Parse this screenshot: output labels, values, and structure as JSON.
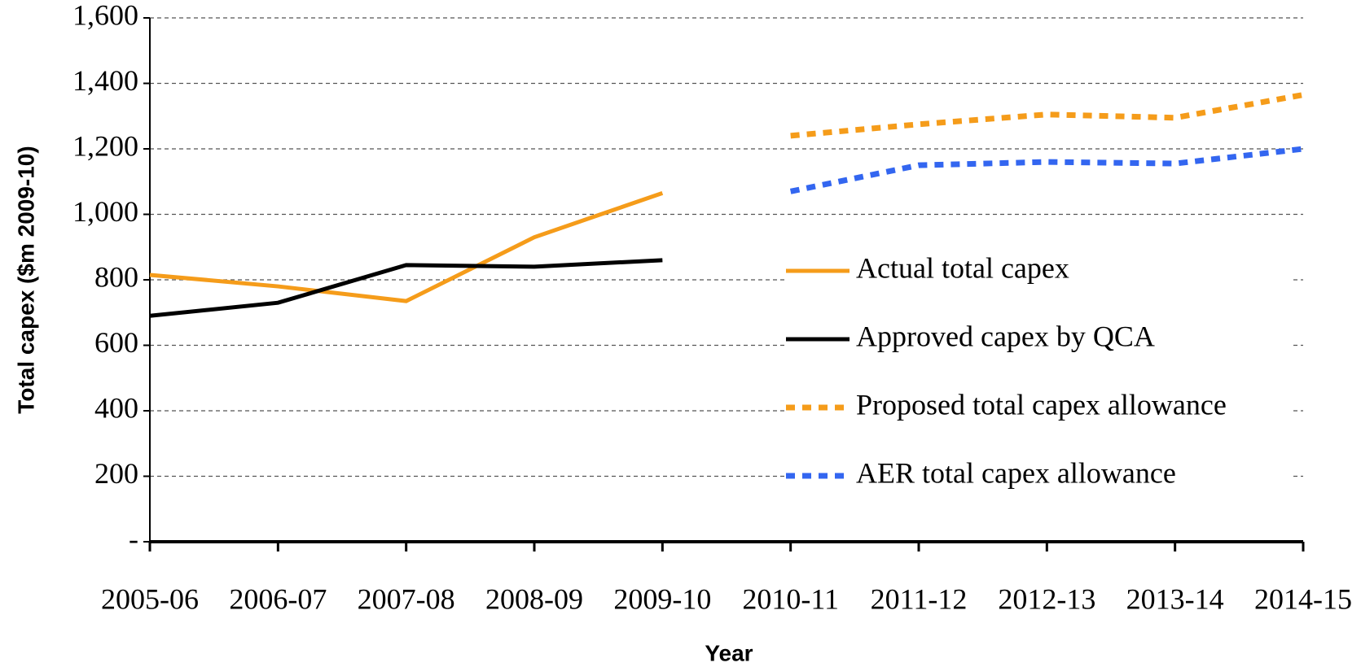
{
  "chart_data": {
    "type": "line",
    "x_label": "Year",
    "y_label": "Total capex ($m 2009-10)",
    "categories": [
      "2005-06",
      "2006-07",
      "2007-08",
      "2008-09",
      "2009-10",
      "2010-11",
      "2011-12",
      "2012-13",
      "2013-14",
      "2014-15"
    ],
    "series": [
      {
        "name": "Actual total capex",
        "color": "#f59c1a",
        "dashed": false,
        "values": [
          815,
          780,
          735,
          930,
          1065,
          null,
          null,
          null,
          null,
          null
        ]
      },
      {
        "name": "Approved capex by QCA",
        "color": "#000000",
        "dashed": false,
        "values": [
          690,
          730,
          845,
          840,
          860,
          null,
          null,
          null,
          null,
          null
        ]
      },
      {
        "name": "Proposed total capex allowance",
        "color": "#f59c1a",
        "dashed": true,
        "values": [
          null,
          null,
          null,
          null,
          null,
          1240,
          1275,
          1305,
          1295,
          1365
        ]
      },
      {
        "name": "AER total capex allowance",
        "color": "#3366f0",
        "dashed": true,
        "values": [
          null,
          null,
          null,
          null,
          null,
          1070,
          1150,
          1160,
          1155,
          1200
        ]
      }
    ],
    "ylim": [
      0,
      1600
    ],
    "yticks": [
      {
        "value": 0,
        "label": "-"
      },
      200,
      400,
      600,
      800,
      {
        "value": 1000,
        "label": "1,000"
      },
      {
        "value": 1200,
        "label": "1,200"
      },
      {
        "value": 1400,
        "label": "1,400"
      },
      {
        "value": 1600,
        "label": "1,600"
      }
    ],
    "grid": true,
    "legend": "center right"
  }
}
